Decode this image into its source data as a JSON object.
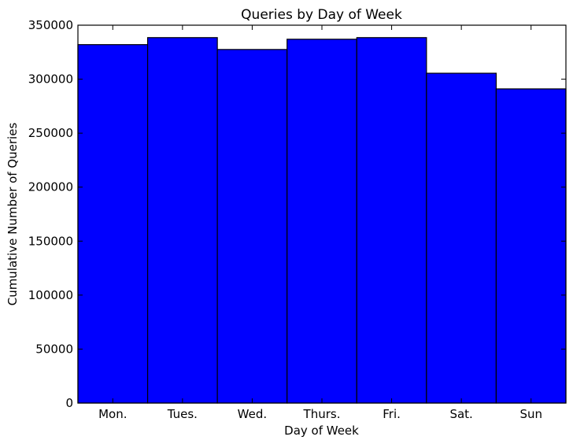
{
  "chart_data": {
    "type": "bar",
    "title": "Queries by Day of Week",
    "xlabel": "Day of Week",
    "ylabel": "Cumulative Number of Queries",
    "categories": [
      "Mon.",
      "Tues.",
      "Wed.",
      "Thurs.",
      "Fri.",
      "Sat.",
      "Sun"
    ],
    "values": [
      332000,
      338500,
      327500,
      337000,
      338500,
      305500,
      291000
    ],
    "ylim": [
      0,
      350000
    ],
    "yticks": [
      "0",
      "50000",
      "100000",
      "150000",
      "200000",
      "250000",
      "300000",
      "350000"
    ],
    "grid": false,
    "legend": "none",
    "bar_color": "#0000ff",
    "edge_color": "#000000"
  }
}
